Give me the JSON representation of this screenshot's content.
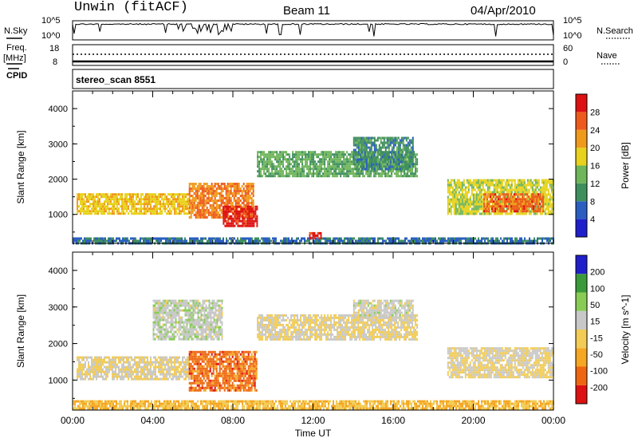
{
  "header": {
    "station": "Unwin (fitACF)",
    "beam": "Beam 11",
    "date": "04/Apr/2010"
  },
  "strip_panels": {
    "nsky_label": "N.Sky",
    "nsky_ticks": [
      "10^5",
      "10^0"
    ],
    "nsearch_label": "N.Search",
    "nsearch_ticks": [
      "10^5",
      "10^0"
    ],
    "freq_label": "Freq.",
    "freq_unit": "[MHz]",
    "freq_ticks": [
      "18",
      "8"
    ],
    "nave_label": "Nave",
    "nave_ticks": [
      "60",
      "0"
    ],
    "cpid_label": "CPID",
    "cpid_text": "stereo_scan 8551"
  },
  "chart_data": [
    {
      "type": "heatmap",
      "title": "",
      "ylabel": "Slant Range [km]",
      "xlabel": "",
      "x_range_hours": [
        0,
        24
      ],
      "ylim": [
        180,
        4500
      ],
      "yticks": [
        "4000",
        "3000",
        "2000",
        "1000"
      ],
      "colorbar": {
        "label": "Power [dB]",
        "ticks": [
          "28",
          "24",
          "20",
          "16",
          "12",
          "8",
          "4"
        ],
        "range": [
          0,
          30
        ]
      },
      "bands": [
        {
          "start": 0.2,
          "end": 5.8,
          "lo": 1050,
          "hi": 1600,
          "value": 18
        },
        {
          "start": 5.8,
          "end": 9.0,
          "lo": 900,
          "hi": 1900,
          "value": 22
        },
        {
          "start": 7.5,
          "end": 9.2,
          "lo": 650,
          "hi": 1250,
          "value": 28
        },
        {
          "start": 9.2,
          "end": 17.2,
          "lo": 2100,
          "hi": 2800,
          "value": 12
        },
        {
          "start": 14.0,
          "end": 17.0,
          "lo": 2300,
          "hi": 3200,
          "value": 9
        },
        {
          "start": 18.7,
          "end": 24.0,
          "lo": 1050,
          "hi": 2000,
          "value": 16
        },
        {
          "start": 20.5,
          "end": 23.5,
          "lo": 1100,
          "hi": 1600,
          "value": 24
        },
        {
          "start": 0.0,
          "end": 24.0,
          "lo": 180,
          "hi": 350,
          "value": 7
        },
        {
          "start": 11.8,
          "end": 12.4,
          "lo": 300,
          "hi": 500,
          "value": 28
        }
      ]
    },
    {
      "type": "heatmap",
      "title": "",
      "ylabel": "Slant Range [km]",
      "xlabel": "Time UT",
      "x_range_hours": [
        0,
        24
      ],
      "ylim": [
        180,
        4500
      ],
      "yticks": [
        "4000",
        "3000",
        "2000",
        "1000"
      ],
      "xticks": [
        "00:00",
        "04:00",
        "08:00",
        "12:00",
        "16:00",
        "20:00",
        "00:00"
      ],
      "colorbar": {
        "label": "Velocity [m s^-1]",
        "ticks": [
          "200",
          "100",
          "50",
          "15",
          "-15",
          "-50",
          "-100",
          "-200"
        ],
        "range": [
          -250,
          250
        ]
      },
      "bands": [
        {
          "start": 0.2,
          "end": 5.8,
          "lo": 1050,
          "hi": 1650,
          "value": 0
        },
        {
          "start": 5.8,
          "end": 9.2,
          "lo": 700,
          "hi": 1800,
          "value": -150
        },
        {
          "start": 9.2,
          "end": 17.2,
          "lo": 2100,
          "hi": 2800,
          "value": 0
        },
        {
          "start": 14.0,
          "end": 17.0,
          "lo": 2700,
          "hi": 3200,
          "value": 30
        },
        {
          "start": 18.7,
          "end": 24.0,
          "lo": 1100,
          "hi": 1900,
          "value": 0
        },
        {
          "start": 0.0,
          "end": 24.0,
          "lo": 200,
          "hi": 450,
          "value": -60
        },
        {
          "start": 4.0,
          "end": 7.5,
          "lo": 2100,
          "hi": 3200,
          "value": 40
        }
      ]
    }
  ],
  "colors": {
    "power_scale": [
      "#1f1fcc",
      "#2a5ec0",
      "#3f8f5e",
      "#6fb55a",
      "#e8d21c",
      "#f09a1c",
      "#ee5a1c",
      "#dd1111"
    ],
    "velocity_scale": [
      "#dd1111",
      "#ee6611",
      "#f5a623",
      "#f2cc55",
      "#c8c8c8",
      "#88cc55",
      "#3a9a3a",
      "#1f1fcc"
    ]
  }
}
